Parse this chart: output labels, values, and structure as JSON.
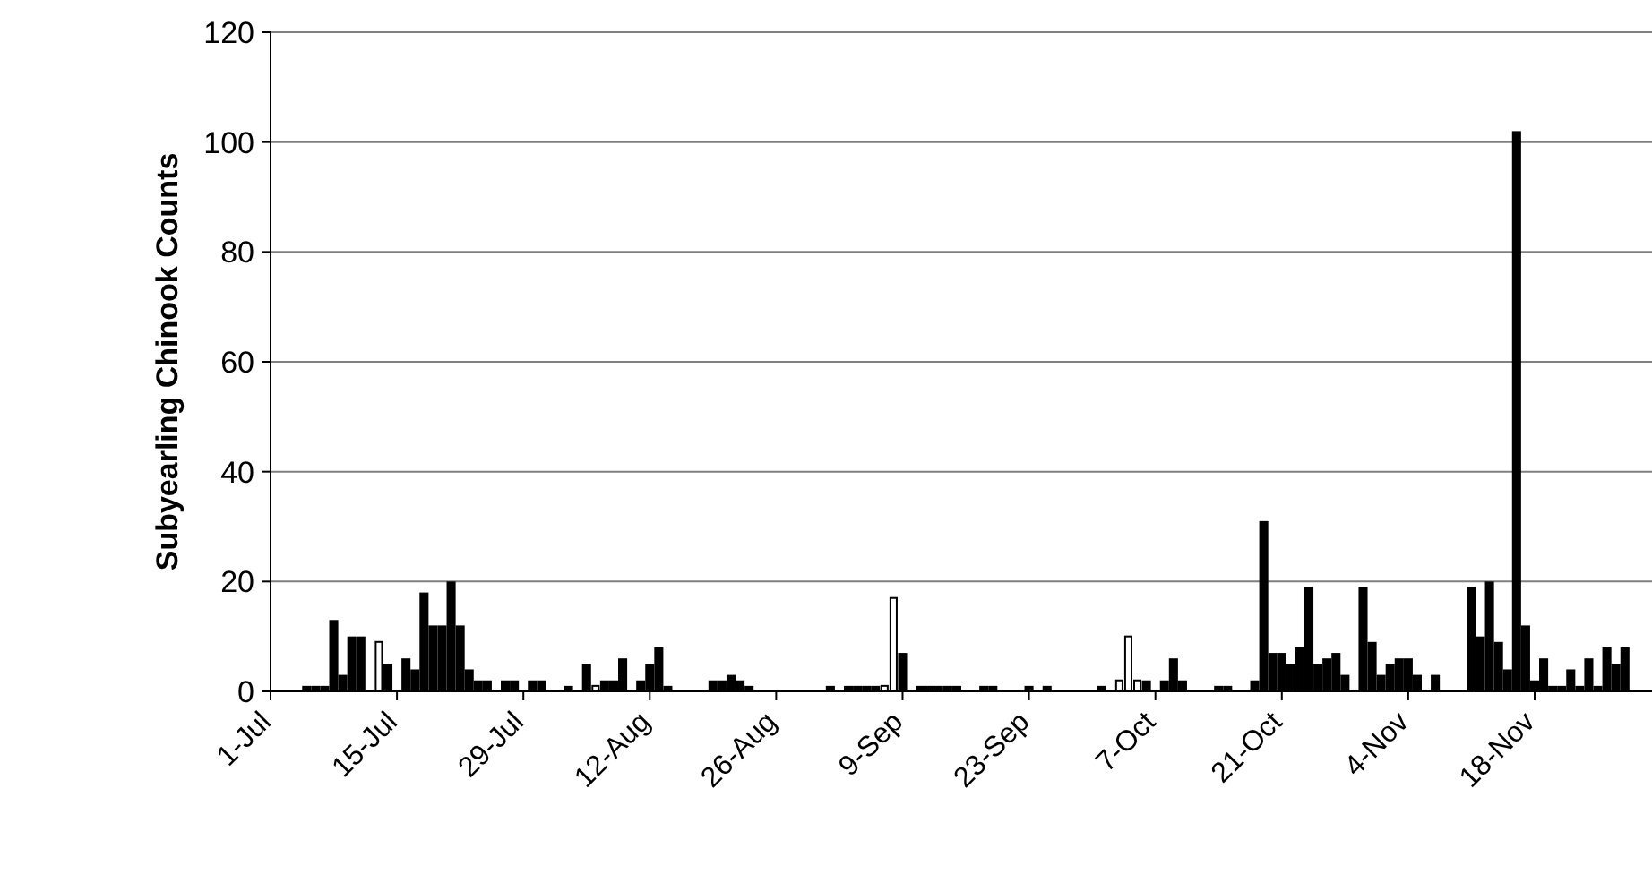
{
  "chart_data": {
    "type": "bar",
    "ylabel": "Subyearling Chinook Counts",
    "xlim": [
      "--07-01",
      "--12-01"
    ],
    "xticks": [
      {
        "value": "--07-01",
        "label": "1-Jul"
      },
      {
        "value": "--07-15",
        "label": "15-Jul"
      },
      {
        "value": "--07-29",
        "label": "29-Jul"
      },
      {
        "value": "--08-12",
        "label": "12-Aug"
      },
      {
        "value": "--08-26",
        "label": "26-Aug"
      },
      {
        "value": "--09-09",
        "label": "9-Sep"
      },
      {
        "value": "--09-23",
        "label": "23-Sep"
      },
      {
        "value": "--10-07",
        "label": "7-Oct"
      },
      {
        "value": "--10-21",
        "label": "21-Oct"
      },
      {
        "value": "--11-04",
        "label": "4-Nov"
      },
      {
        "value": "--11-18",
        "label": "18-Nov"
      }
    ],
    "ylim": [
      0,
      120
    ],
    "yticks": [
      0,
      20,
      40,
      60,
      80,
      100,
      120
    ],
    "grid": "y",
    "series": [
      {
        "color": "#000000",
        "x": [
          "--07-05",
          "--07-06",
          "--07-07",
          "--07-08",
          "--07-09",
          "--07-10",
          "--07-11",
          "--07-14",
          "--07-16",
          "--07-17",
          "--07-18",
          "--07-19",
          "--07-20",
          "--07-21",
          "--07-22",
          "--07-23",
          "--07-24",
          "--07-25",
          "--07-27",
          "--07-28",
          "--07-30",
          "--07-31",
          "--08-03",
          "--08-05",
          "--08-07",
          "--08-08",
          "--08-09",
          "--08-11",
          "--08-12",
          "--08-13",
          "--08-14",
          "--08-19",
          "--08-20",
          "--08-21",
          "--08-22",
          "--08-23",
          "--09-01",
          "--09-03",
          "--09-04",
          "--09-05",
          "--09-06",
          "--09-09",
          "--09-11",
          "--09-12",
          "--09-13",
          "--09-14",
          "--09-15",
          "--09-18",
          "--09-19",
          "--09-23",
          "--09-25",
          "--10-01",
          "--10-06",
          "--10-08",
          "--10-09",
          "--10-10",
          "--10-14",
          "--10-15",
          "--10-18",
          "--10-19",
          "--10-20",
          "--10-21",
          "--10-22",
          "--10-23",
          "--10-24",
          "--10-25",
          "--10-26",
          "--10-27",
          "--10-28",
          "--10-30",
          "--10-31",
          "--11-01",
          "--11-02",
          "--11-03",
          "--11-04",
          "--11-05",
          "--11-07",
          "--11-11",
          "--11-12",
          "--11-13",
          "--11-14",
          "--11-15",
          "--11-16",
          "--11-17",
          "--11-18",
          "--11-19",
          "--11-20",
          "--11-21",
          "--11-22",
          "--11-23",
          "--11-24",
          "--11-25",
          "--11-26",
          "--11-27",
          "--11-28"
        ],
        "values": [
          1,
          1,
          1,
          13,
          3,
          10,
          10,
          5,
          6,
          4,
          18,
          12,
          12,
          20,
          12,
          4,
          2,
          2,
          2,
          2,
          2,
          2,
          1,
          5,
          2,
          2,
          6,
          2,
          5,
          8,
          1,
          2,
          2,
          3,
          2,
          1,
          1,
          1,
          1,
          1,
          1,
          7,
          1,
          1,
          1,
          1,
          1,
          1,
          1,
          1,
          1,
          1,
          2,
          2,
          6,
          2,
          1,
          1,
          2,
          31,
          7,
          7,
          5,
          8,
          19,
          5,
          6,
          7,
          3,
          19,
          9,
          3,
          5,
          6,
          6,
          3,
          3,
          19,
          10,
          20,
          9,
          4,
          102,
          12,
          2,
          6,
          1,
          1,
          4,
          1,
          6,
          1,
          8,
          5,
          8
        ]
      },
      {
        "color": "#ffffff",
        "x": [
          "--07-13",
          "--08-06",
          "--09-07",
          "--09-08",
          "--10-03",
          "--10-04",
          "--10-05"
        ],
        "values": [
          9,
          1,
          1,
          17,
          2,
          10,
          2
        ]
      }
    ]
  }
}
